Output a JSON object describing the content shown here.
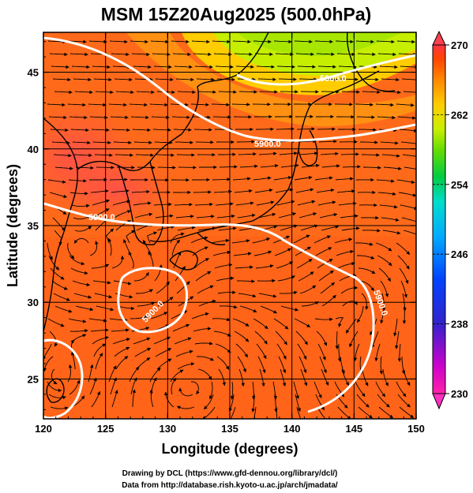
{
  "figure": {
    "title": "MSM 15Z20Aug2025 (500.0hPa)",
    "xlabel": "Longitude (degrees)",
    "ylabel": "Latitude  (degrees)",
    "credit_line1": "Drawing by DCL (https://www.gfd-dennou.org/library/dcl/)",
    "credit_line2": "Data from http://database.rish.kyoto-u.ac.jp/arch/jmadata/"
  },
  "map": {
    "lon_range": [
      120,
      150
    ],
    "lat_range": [
      22.4,
      47.6
    ],
    "lon_ticks": [
      "120",
      "125",
      "130",
      "135",
      "140",
      "145",
      "150"
    ],
    "lat_ticks": [
      "25",
      "30",
      "35",
      "40",
      "45"
    ],
    "grid_lons": [
      125,
      130,
      135,
      140,
      145
    ],
    "grid_lats": [
      25,
      30,
      35,
      40,
      45
    ],
    "height_contour_label": "5900.0",
    "field": "temperature (K)",
    "wind_field": "streamlines with arrows"
  },
  "colorbar": {
    "min": 230,
    "max": 270,
    "labels": [
      "270",
      "262",
      "254",
      "246",
      "238",
      "230"
    ],
    "colors": [
      "#ff22aa",
      "#cc00cc",
      "#3322cc",
      "#0044ff",
      "#00aaff",
      "#00ddcc",
      "#00cc44",
      "#66dd00",
      "#ccee00",
      "#ffcc00",
      "#ff8800",
      "#ff4400",
      "#ff3344"
    ]
  }
}
